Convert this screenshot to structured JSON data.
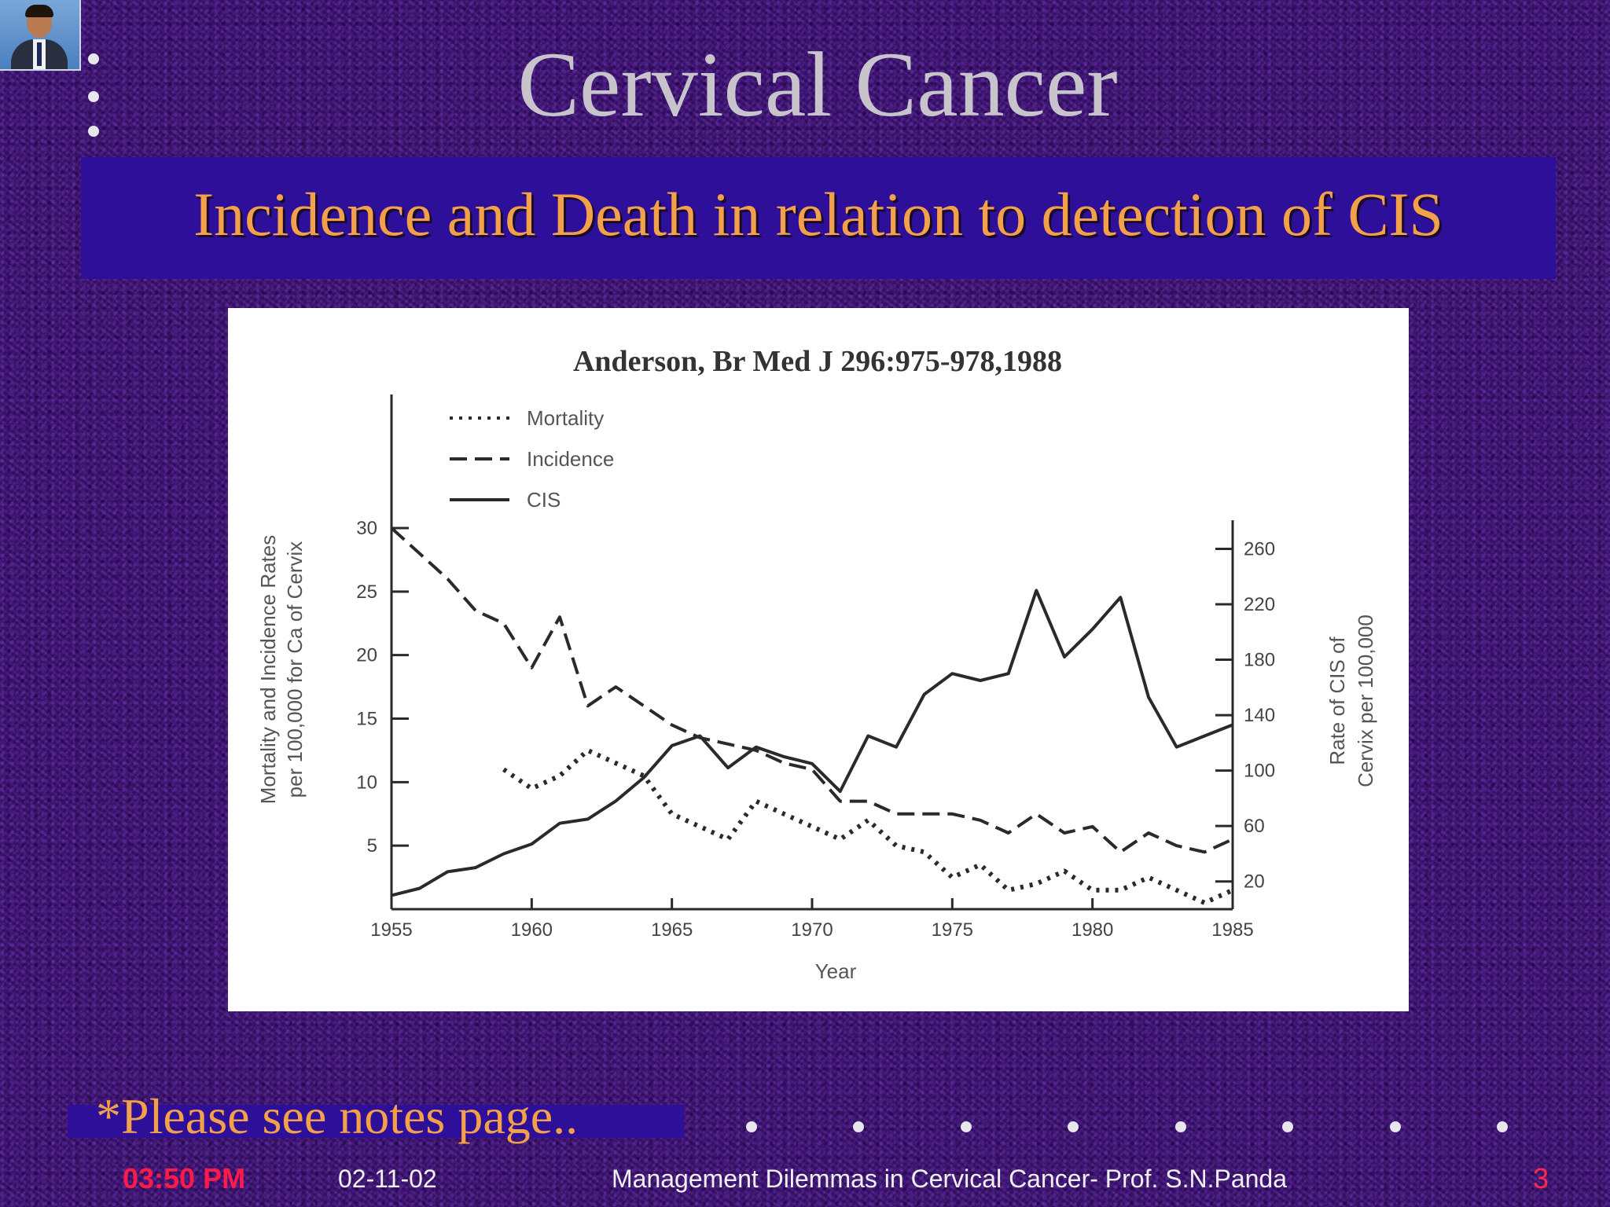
{
  "slide": {
    "title": "Cervical Cancer",
    "subtitle": "Incidence and Death in relation to detection of CIS",
    "note": "*Please see notes page..",
    "footer_time": "03:50 PM",
    "footer_date": "02-11-02",
    "footer_title": "Management Dilemmas in Cervical Cancer- Prof. S.N.Panda",
    "page_number": "3",
    "colors": {
      "accent": "#f3a04a",
      "bar": "#2e0f9a",
      "background": "#3c1470",
      "footer_time": "#ff1a4a"
    }
  },
  "chart_data": {
    "type": "line",
    "title": "Anderson, Br Med J 296:975-978,1988",
    "xlabel": "Year",
    "ylabel_left": [
      "Mortality and Incidence Rates",
      "per 100,000 for Ca of Cervix"
    ],
    "ylabel_right": [
      "Rate of CIS of",
      "Cervix per 100,000"
    ],
    "x_ticks": [
      "1955",
      "1960",
      "1965",
      "1970",
      "1975",
      "1980",
      "1985"
    ],
    "y_left_ticks": [
      "5",
      "10",
      "15",
      "20",
      "25",
      "30"
    ],
    "y_right_ticks": [
      "20",
      "60",
      "100",
      "140",
      "180",
      "220",
      "260"
    ],
    "xlim": [
      1955,
      1985
    ],
    "ylim_left": [
      0,
      30
    ],
    "ylim_right": [
      0,
      275
    ],
    "legend_position": "top-left",
    "series": [
      {
        "name": "Mortality",
        "axis": "left",
        "style": "dotted",
        "x": [
          1959,
          1960,
          1961,
          1962,
          1963,
          1964,
          1965,
          1966,
          1967,
          1968,
          1969,
          1970,
          1971,
          1972,
          1973,
          1974,
          1975,
          1976,
          1977,
          1978,
          1979,
          1980,
          1981,
          1982,
          1983,
          1984,
          1985
        ],
        "y": [
          11,
          9.5,
          10.5,
          12.5,
          11.5,
          10.5,
          7.5,
          6.5,
          5.5,
          8.5,
          7.5,
          6.5,
          5.5,
          7,
          5,
          4.5,
          2.5,
          3.5,
          1.5,
          2,
          3,
          1.5,
          1.5,
          2.5,
          1.5,
          0.5,
          1.5
        ]
      },
      {
        "name": "Incidence",
        "axis": "left",
        "style": "dashed",
        "x": [
          1955,
          1956,
          1957,
          1958,
          1959,
          1960,
          1961,
          1962,
          1963,
          1964,
          1965,
          1966,
          1967,
          1968,
          1969,
          1970,
          1971,
          1972,
          1973,
          1974,
          1975,
          1976,
          1977,
          1978,
          1979,
          1980,
          1981,
          1982,
          1983,
          1984,
          1985
        ],
        "y": [
          30,
          28,
          26,
          23.5,
          22.5,
          19,
          23,
          16,
          17.5,
          16,
          14.5,
          13.5,
          13,
          12.5,
          11.5,
          11,
          8.5,
          8.5,
          7.5,
          7.5,
          7.5,
          7,
          6,
          7.5,
          6,
          6.5,
          4.5,
          6,
          5,
          4.5,
          5.5
        ]
      },
      {
        "name": "CIS",
        "axis": "right",
        "style": "solid",
        "x": [
          1955,
          1956,
          1957,
          1958,
          1959,
          1960,
          1961,
          1962,
          1963,
          1964,
          1965,
          1966,
          1967,
          1968,
          1969,
          1970,
          1971,
          1972,
          1973,
          1974,
          1975,
          1976,
          1977,
          1978,
          1979,
          1980,
          1981,
          1982,
          1983,
          1984,
          1985
        ],
        "y": [
          10,
          15,
          27,
          30,
          40,
          47,
          62,
          65,
          78,
          95,
          118,
          125,
          102,
          117,
          110,
          105,
          85,
          125,
          117,
          155,
          170,
          165,
          170,
          230,
          182,
          202,
          225,
          153,
          117,
          125,
          133
        ]
      }
    ]
  }
}
